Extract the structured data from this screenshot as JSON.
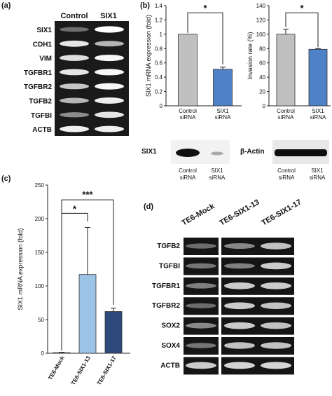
{
  "panels": {
    "a": {
      "label": "(a)",
      "lanes": [
        "Control",
        "SIX1"
      ],
      "genes": [
        "SIX1",
        "CDH1",
        "VIM",
        "TGFBR1",
        "TGFBR2",
        "TGFB2",
        "TGFBI",
        "ACTB"
      ]
    },
    "b": {
      "label": "(b)",
      "western": {
        "left_label": "SIX1",
        "right_label": "β-Actin",
        "lanes": [
          [
            "Control",
            "siRNA"
          ],
          [
            "SIX1",
            "siRNA"
          ]
        ]
      }
    },
    "c": {
      "label": "(c)"
    },
    "d": {
      "label": "(d)",
      "lanes": [
        "TE6-Mock",
        "TE6-SIX1-13",
        "TE6-SIX1-17"
      ],
      "genes": [
        "TGFB2",
        "TGFBI",
        "TGFBR1",
        "TGFBR2",
        "SOX2",
        "SOX4",
        "ACTB"
      ]
    }
  },
  "chart_data": [
    {
      "id": "b-left",
      "type": "bar",
      "categories": [
        [
          "Control",
          "siRNA"
        ],
        [
          "SIX1",
          "siRNA"
        ]
      ],
      "values": [
        1.0,
        0.51
      ],
      "errors": [
        0,
        0.03
      ],
      "colors": [
        "#c0c0c0",
        "#4f81c7"
      ],
      "ylabel": "SIX1 mRNA expression (fold)",
      "ylim": [
        0,
        1.4
      ],
      "yticks": [
        "0",
        "0.2",
        "0.4",
        "0.6",
        "0.8",
        "1",
        "1.2",
        "1.4"
      ],
      "significance": [
        "*"
      ]
    },
    {
      "id": "b-right",
      "type": "bar",
      "categories": [
        [
          "Control",
          "siRNA"
        ],
        [
          "SIX1",
          "siRNA"
        ]
      ],
      "values": [
        100,
        79
      ],
      "errors": [
        7,
        1
      ],
      "colors": [
        "#c0c0c0",
        "#4f81c7"
      ],
      "ylabel": "Invasion rate (%)",
      "ylim": [
        0,
        140
      ],
      "yticks": [
        "0",
        "20",
        "40",
        "60",
        "80",
        "100",
        "120",
        "140"
      ],
      "significance": [
        "*"
      ]
    },
    {
      "id": "c",
      "type": "bar",
      "categories": [
        "TE6-Mock",
        "TE6-SIX1-13",
        "TE6-SIX1-17"
      ],
      "values": [
        1,
        117,
        62
      ],
      "errors": [
        0.5,
        70,
        5
      ],
      "colors": [
        "#ffffff",
        "#9dc3e6",
        "#2e4a7d"
      ],
      "ylabel": "SIX1 mRNA expression (fold)",
      "ylim": [
        0,
        250
      ],
      "yticks": [
        "0",
        "50",
        "100",
        "150",
        "200",
        "250"
      ],
      "significance": [
        "*",
        "***"
      ]
    }
  ]
}
